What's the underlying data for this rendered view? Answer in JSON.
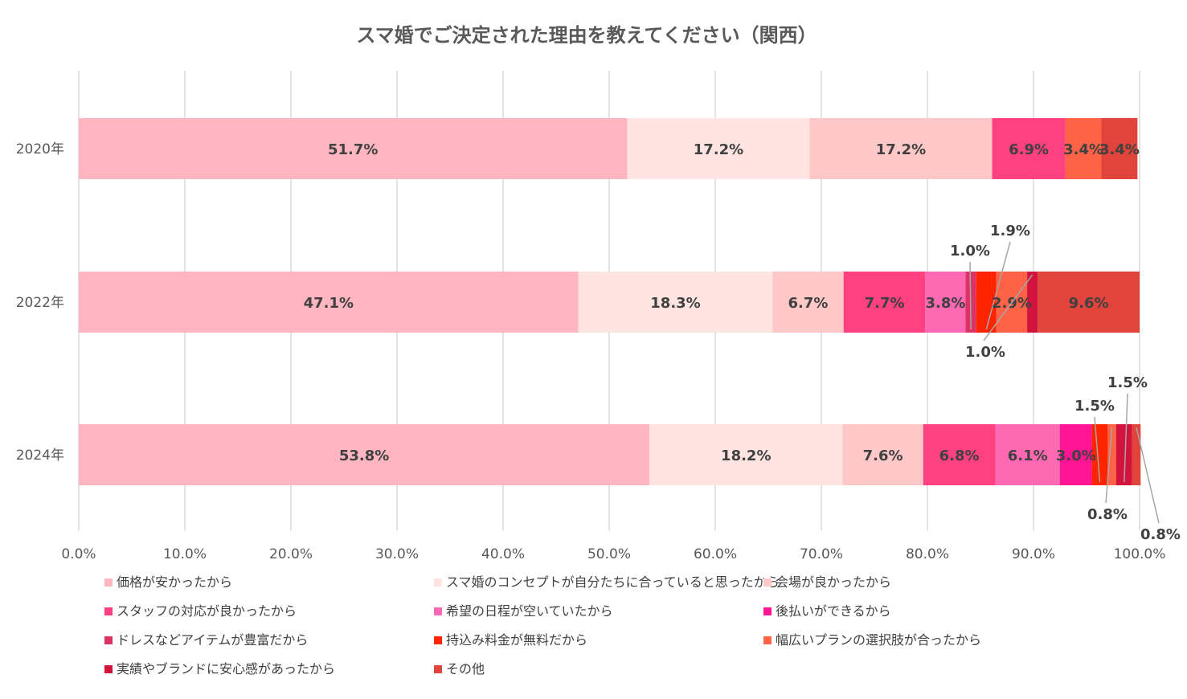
{
  "chart_data": {
    "type": "bar",
    "orientation": "horizontal",
    "stacked": "percent",
    "title": "スマ婚でご決定された理由を教えてください（関西）",
    "xlabel": "",
    "ylabel": "",
    "xlim": [
      0,
      100
    ],
    "x_ticks": [
      "0.0%",
      "10.0%",
      "20.0%",
      "30.0%",
      "40.0%",
      "50.0%",
      "60.0%",
      "70.0%",
      "80.0%",
      "90.0%",
      "100.0%"
    ],
    "grid": "vertical",
    "legend_position": "bottom",
    "categories": [
      "2020年",
      "2022年",
      "2024年"
    ],
    "series": [
      {
        "name": "価格が安かったから",
        "color": "#FFB6C1",
        "values": [
          51.7,
          47.1,
          53.8
        ],
        "labels": [
          "51.7%",
          "47.1%",
          "53.8%"
        ]
      },
      {
        "name": "スマ婚のコンセプトが自分たちに合っていると思ったから",
        "color": "#FFE4E1",
        "values": [
          17.2,
          18.3,
          18.2
        ],
        "labels": [
          "17.2%",
          "18.3%",
          "18.2%"
        ]
      },
      {
        "name": "会場が良かったから",
        "color": "#FFC8C8",
        "values": [
          17.2,
          6.7,
          7.6
        ],
        "labels": [
          "17.2%",
          "6.7%",
          "7.6%"
        ]
      },
      {
        "name": "スタッフの対応が良かったから",
        "color": "#FF4081",
        "values": [
          6.9,
          7.7,
          6.8
        ],
        "labels": [
          "6.9%",
          "7.7%",
          "6.8%"
        ]
      },
      {
        "name": "希望の日程が空いていたから",
        "color": "#FF69B4",
        "values": [
          0,
          3.8,
          6.1
        ],
        "labels": [
          "",
          "3.8%",
          "6.1%"
        ]
      },
      {
        "name": "後払いができるから",
        "color": "#FF1493",
        "values": [
          0,
          0,
          3.0
        ],
        "labels": [
          "",
          "",
          "3.0%"
        ]
      },
      {
        "name": "ドレスなどアイテムが豊富だから",
        "color": "#DC3264",
        "values": [
          0,
          1.0,
          0
        ],
        "labels": [
          "",
          "1.0%",
          ""
        ]
      },
      {
        "name": "持込み料金が無料だから",
        "color": "#FF2400",
        "values": [
          0,
          1.9,
          1.5
        ],
        "labels": [
          "",
          "1.9%",
          "1.5%"
        ]
      },
      {
        "name": "幅広いプランの選択肢が合ったから",
        "color": "#FF6347",
        "values": [
          3.4,
          2.9,
          0.8
        ],
        "labels": [
          "3.4%",
          "2.9%",
          "0.8%"
        ]
      },
      {
        "name": "実績やブランドに安心感があったから",
        "color": "#D2143C",
        "values": [
          0,
          1.0,
          1.5
        ],
        "labels": [
          "",
          "1.0%",
          "1.5%"
        ]
      },
      {
        "name": "その他",
        "color": "#E0443A",
        "values": [
          3.4,
          9.6,
          0.8
        ],
        "labels": [
          "3.4%",
          "9.6%",
          "0.8%"
        ]
      }
    ]
  }
}
